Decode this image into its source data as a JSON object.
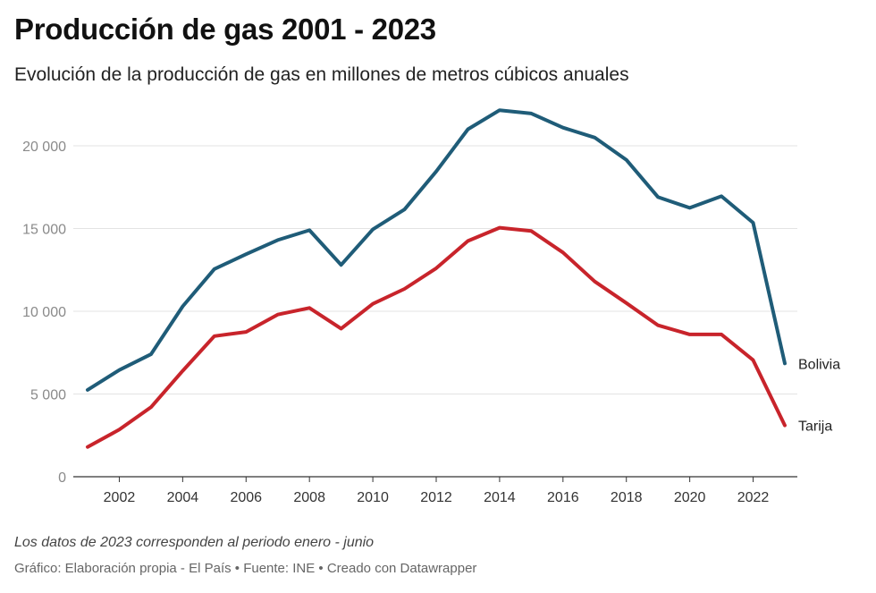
{
  "title": "Producción de gas 2001 - 2023",
  "subtitle": "Evolución de la producción de gas en millones de metros cúbicos anuales",
  "note": "Los datos de 2023 corresponden al periodo enero - junio",
  "source": "Gráfico: Elaboración propia - El País • Fuente: INE • Creado con Datawrapper",
  "chart_data": {
    "type": "line",
    "title": "Producción de gas 2001 - 2023",
    "subtitle": "Evolución de la producción de gas en millones de metros cúbicos anuales",
    "xlabel": "",
    "ylabel": "",
    "x": [
      2001,
      2002,
      2003,
      2004,
      2005,
      2006,
      2007,
      2008,
      2009,
      2010,
      2011,
      2012,
      2013,
      2014,
      2015,
      2016,
      2017,
      2018,
      2019,
      2020,
      2021,
      2022,
      2023
    ],
    "xticks": [
      2002,
      2004,
      2006,
      2008,
      2010,
      2012,
      2014,
      2016,
      2018,
      2020,
      2022
    ],
    "ylim": [
      0,
      22500
    ],
    "yticks": [
      0,
      5000,
      10000,
      15000,
      20000
    ],
    "ytick_labels": [
      "0",
      "5 000",
      "10 000",
      "15 000",
      "20 000"
    ],
    "grid": true,
    "legend": "direct labels at line ends",
    "series": [
      {
        "name": "Bolivia",
        "color": "#1f5c78",
        "values": [
          5250,
          6450,
          7400,
          10300,
          12550,
          13450,
          14300,
          14900,
          12800,
          14950,
          16150,
          18450,
          21000,
          22150,
          21950,
          21100,
          20500,
          19150,
          16900,
          16250,
          16950,
          15350,
          6850
        ]
      },
      {
        "name": "Tarija",
        "color": "#c8242b",
        "values": [
          1800,
          2850,
          4200,
          6400,
          8500,
          8750,
          9800,
          10200,
          8950,
          10450,
          11350,
          12600,
          14250,
          15050,
          14850,
          13550,
          11800,
          10500,
          9150,
          8600,
          8600,
          7050,
          3100
        ]
      }
    ]
  }
}
